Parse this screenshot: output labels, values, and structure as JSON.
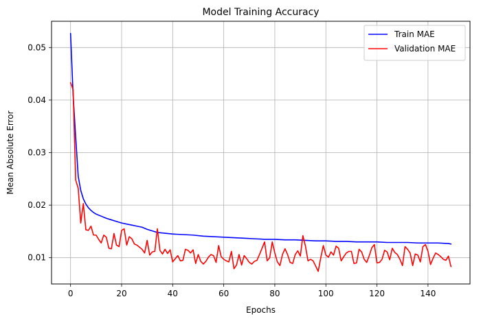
{
  "chart_data": {
    "type": "line",
    "title": "Model Training Accuracy",
    "xlabel": "Epochs",
    "ylabel": "Mean Absolute Error",
    "xlim": [
      -7.45,
      156.45
    ],
    "ylim": [
      0.005,
      0.055
    ],
    "xticks": [
      0,
      20,
      40,
      60,
      80,
      100,
      120,
      140
    ],
    "xtick_labels": [
      "0",
      "20",
      "40",
      "60",
      "80",
      "100",
      "120",
      "140"
    ],
    "yticks": [
      0.01,
      0.02,
      0.03,
      0.04,
      0.05
    ],
    "ytick_labels": [
      "0.01",
      "0.02",
      "0.03",
      "0.04",
      "0.05"
    ],
    "grid": true,
    "legend_position": "top-right",
    "series": [
      {
        "name": "Train MAE",
        "color": "#0000ff",
        "x": [
          0,
          1,
          2,
          3,
          4,
          5,
          6,
          7,
          8,
          9,
          10,
          12,
          14,
          16,
          18,
          20,
          22,
          24,
          26,
          28,
          30,
          32,
          34,
          36,
          38,
          40,
          44,
          48,
          52,
          56,
          60,
          64,
          68,
          72,
          76,
          80,
          84,
          88,
          92,
          96,
          100,
          104,
          108,
          112,
          116,
          120,
          124,
          128,
          132,
          136,
          140,
          144,
          148,
          149
        ],
        "values": [
          0.0527,
          0.041,
          0.033,
          0.0255,
          0.0228,
          0.0212,
          0.0202,
          0.0195,
          0.019,
          0.0186,
          0.0183,
          0.0179,
          0.0175,
          0.0172,
          0.0169,
          0.0166,
          0.0164,
          0.0162,
          0.016,
          0.0158,
          0.0154,
          0.0151,
          0.0148,
          0.0147,
          0.0146,
          0.0145,
          0.0144,
          0.0143,
          0.0141,
          0.014,
          0.0139,
          0.0138,
          0.0137,
          0.0136,
          0.0135,
          0.0135,
          0.0134,
          0.0134,
          0.0133,
          0.0132,
          0.0132,
          0.0131,
          0.0131,
          0.013,
          0.013,
          0.013,
          0.0129,
          0.0129,
          0.0129,
          0.0128,
          0.0128,
          0.0128,
          0.0127,
          0.0126
        ]
      },
      {
        "name": "Validation MAE",
        "color": "#ff0000",
        "x": [
          0,
          1,
          2,
          3,
          4,
          5,
          6,
          7,
          8,
          9,
          10,
          11,
          12,
          13,
          14,
          15,
          16,
          17,
          18,
          19,
          20,
          21,
          22,
          23,
          24,
          25,
          26,
          27,
          28,
          29,
          30,
          31,
          32,
          33,
          34,
          35,
          36,
          37,
          38,
          39,
          40,
          41,
          42,
          43,
          44,
          45,
          46,
          47,
          48,
          49,
          50,
          51,
          52,
          53,
          54,
          55,
          56,
          57,
          58,
          59,
          60,
          61,
          62,
          63,
          64,
          65,
          66,
          67,
          68,
          69,
          70,
          71,
          72,
          73,
          74,
          75,
          76,
          77,
          78,
          79,
          80,
          81,
          82,
          83,
          84,
          85,
          86,
          87,
          88,
          89,
          90,
          91,
          92,
          93,
          94,
          95,
          96,
          97,
          98,
          99,
          100,
          101,
          102,
          103,
          104,
          105,
          106,
          107,
          108,
          109,
          110,
          111,
          112,
          113,
          114,
          115,
          116,
          117,
          118,
          119,
          120,
          121,
          122,
          123,
          124,
          125,
          126,
          127,
          128,
          129,
          130,
          131,
          132,
          133,
          134,
          135,
          136,
          137,
          138,
          139,
          140,
          141,
          142,
          143,
          144,
          145,
          146,
          147,
          148,
          149
        ],
        "values": [
          0.0433,
          0.042,
          0.0248,
          0.0232,
          0.0166,
          0.0203,
          0.0153,
          0.0152,
          0.016,
          0.0143,
          0.0143,
          0.0135,
          0.0128,
          0.0143,
          0.0139,
          0.0118,
          0.0117,
          0.0146,
          0.0124,
          0.0121,
          0.0152,
          0.0155,
          0.0124,
          0.014,
          0.0136,
          0.0126,
          0.0124,
          0.012,
          0.0116,
          0.0109,
          0.0133,
          0.0105,
          0.0111,
          0.0112,
          0.0155,
          0.0114,
          0.0107,
          0.0116,
          0.0108,
          0.0115,
          0.0092,
          0.0098,
          0.0104,
          0.0094,
          0.0095,
          0.0116,
          0.0114,
          0.0109,
          0.0115,
          0.0089,
          0.0106,
          0.0093,
          0.0088,
          0.0093,
          0.0101,
          0.0106,
          0.0104,
          0.0091,
          0.0123,
          0.0102,
          0.0097,
          0.0094,
          0.0092,
          0.0112,
          0.0079,
          0.0086,
          0.0106,
          0.0086,
          0.0104,
          0.0098,
          0.0091,
          0.0088,
          0.0093,
          0.0095,
          0.0106,
          0.0118,
          0.013,
          0.0094,
          0.01,
          0.013,
          0.0109,
          0.0092,
          0.0085,
          0.0106,
          0.0117,
          0.0106,
          0.0091,
          0.0089,
          0.0106,
          0.0113,
          0.0103,
          0.0142,
          0.0122,
          0.0094,
          0.0097,
          0.0094,
          0.0084,
          0.0074,
          0.01,
          0.0123,
          0.0105,
          0.0101,
          0.0111,
          0.0105,
          0.0122,
          0.0118,
          0.0094,
          0.0102,
          0.0109,
          0.0112,
          0.0112,
          0.0089,
          0.009,
          0.0116,
          0.0111,
          0.0097,
          0.0091,
          0.0104,
          0.0119,
          0.0125,
          0.009,
          0.0091,
          0.0097,
          0.0114,
          0.0111,
          0.0096,
          0.0118,
          0.011,
          0.0106,
          0.0097,
          0.0085,
          0.0121,
          0.0116,
          0.0109,
          0.0085,
          0.0107,
          0.0105,
          0.0092,
          0.0121,
          0.0125,
          0.0112,
          0.0087,
          0.0099,
          0.0109,
          0.0106,
          0.0102,
          0.0097,
          0.0095,
          0.0103,
          0.0083
        ]
      }
    ]
  }
}
